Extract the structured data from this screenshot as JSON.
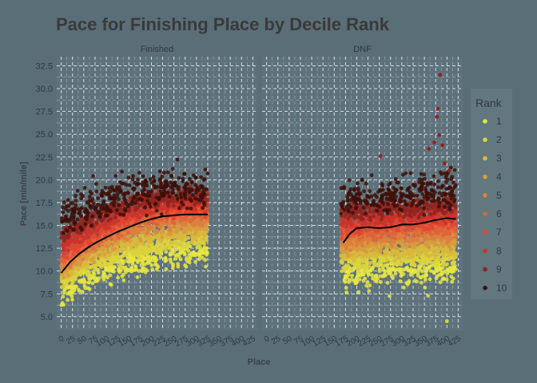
{
  "chart_data": {
    "type": "scatter",
    "title": "Pace for Finishing Place by Decile Rank",
    "xlabel": "Place",
    "ylabel": "Pace [min/mile]",
    "ylim": [
      3.5,
      33.5
    ],
    "y_ticks": [
      "5.0",
      "7.5",
      "10.0",
      "12.5",
      "15.0",
      "17.5",
      "20.0",
      "22.5",
      "25.0",
      "27.5",
      "30.0",
      "32.5"
    ],
    "x_ticks": [
      "0",
      "25",
      "50",
      "75",
      "100",
      "125",
      "150",
      "175",
      "200",
      "225",
      "250",
      "275",
      "300",
      "325",
      "350",
      "375",
      "400",
      "425"
    ],
    "grid": true,
    "legend": {
      "title": "Rank",
      "position": "right",
      "entries": [
        "1",
        "2",
        "3",
        "4",
        "5",
        "6",
        "7",
        "8",
        "9",
        "10"
      ],
      "colors": [
        "#e7e63f",
        "#dcd23c",
        "#d9b93d",
        "#d99a3f",
        "#dd7e3e",
        "#e0623a",
        "#e04532",
        "#c8342c",
        "#8f2420",
        "#3e0f07"
      ]
    },
    "panels": [
      {
        "label": "Finished",
        "xlim": [
          -10,
          435
        ],
        "x_range": [
          0,
          325
        ],
        "smooth": [
          [
            0,
            9.8
          ],
          [
            20,
            11.0
          ],
          [
            40,
            11.9
          ],
          [
            60,
            12.6
          ],
          [
            80,
            13.2
          ],
          [
            100,
            13.7
          ],
          [
            125,
            14.3
          ],
          [
            150,
            14.8
          ],
          [
            175,
            15.3
          ],
          [
            200,
            15.7
          ],
          [
            225,
            16.0
          ],
          [
            250,
            16.1
          ],
          [
            275,
            16.2
          ],
          [
            300,
            16.2
          ],
          [
            325,
            16.2
          ]
        ],
        "rank_bands": [
          {
            "x": 0,
            "center": [
              7.8,
              8.8,
              9.5,
              10.1,
              10.7,
              11.3,
              12.0,
              12.8,
              13.8,
              15.5
            ]
          },
          {
            "x": 50,
            "center": [
              9.2,
              10.3,
              11.1,
              11.7,
              12.3,
              12.9,
              13.5,
              14.2,
              15.2,
              16.6
            ]
          },
          {
            "x": 100,
            "center": [
              10.2,
              11.3,
              12.2,
              12.9,
              13.6,
              14.2,
              14.8,
              15.5,
              16.4,
              17.6
            ]
          },
          {
            "x": 150,
            "center": [
              11.0,
              12.2,
              13.1,
              13.9,
              14.6,
              15.2,
              15.9,
              16.6,
              17.4,
              18.5
            ]
          },
          {
            "x": 200,
            "center": [
              11.6,
              12.8,
              13.8,
              14.6,
              15.3,
              16.0,
              16.6,
              17.3,
              18.0,
              18.8
            ]
          },
          {
            "x": 250,
            "center": [
              12.0,
              13.3,
              14.2,
              15.0,
              15.7,
              16.3,
              16.9,
              17.5,
              18.2,
              19.0
            ]
          },
          {
            "x": 325,
            "center": [
              12.1,
              13.4,
              14.3,
              15.1,
              15.8,
              16.4,
              17.0,
              17.6,
              18.2,
              19.0
            ]
          }
        ]
      },
      {
        "label": "DNF",
        "xlim": [
          -10,
          435
        ],
        "x_range": [
          165,
          420
        ],
        "smooth": [
          [
            170,
            13.1
          ],
          [
            185,
            14.1
          ],
          [
            200,
            14.7
          ],
          [
            225,
            14.8
          ],
          [
            250,
            14.7
          ],
          [
            275,
            14.8
          ],
          [
            300,
            15.1
          ],
          [
            325,
            15.1
          ],
          [
            350,
            15.3
          ],
          [
            375,
            15.6
          ],
          [
            400,
            15.8
          ],
          [
            420,
            15.7
          ]
        ],
        "rank_bands": [
          {
            "x": 170,
            "center": [
              9.8,
              11.0,
              12.0,
              12.8,
              13.5,
              14.2,
              14.9,
              15.6,
              16.5,
              17.8
            ]
          },
          {
            "x": 250,
            "center": [
              10.0,
              11.3,
              12.2,
              13.0,
              13.8,
              14.5,
              15.2,
              15.9,
              16.8,
              18.0
            ]
          },
          {
            "x": 350,
            "center": [
              10.2,
              11.5,
              12.4,
              13.3,
              14.1,
              14.8,
              15.5,
              16.2,
              17.1,
              18.5
            ]
          },
          {
            "x": 420,
            "center": [
              10.3,
              11.6,
              12.6,
              13.5,
              14.3,
              15.0,
              15.7,
              16.4,
              17.3,
              18.6
            ]
          }
        ],
        "outliers": [
          [
            385,
            31.5
          ],
          [
            380,
            27.8
          ],
          [
            378,
            26.9
          ],
          [
            383,
            24.9
          ],
          [
            372,
            24.1
          ],
          [
            390,
            23.8
          ],
          [
            360,
            23.4
          ],
          [
            253,
            22.6
          ],
          [
            395,
            21.8
          ],
          [
            405,
            21.0
          ],
          [
            400,
            4.5
          ]
        ]
      }
    ]
  }
}
